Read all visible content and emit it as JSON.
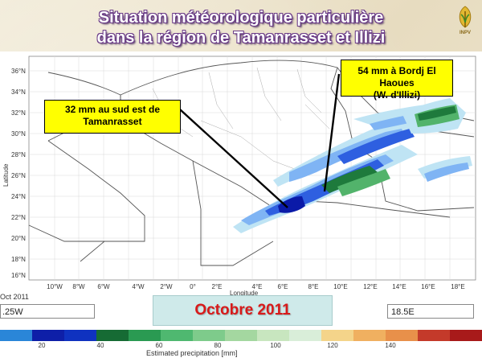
{
  "header": {
    "title_line1": "Situation météorologique particulière",
    "title_line2": "dans la région de Tamanrasset et Illizi",
    "logo_text": "INPV"
  },
  "callouts": {
    "left": {
      "line1": "32 mm au sud est de",
      "line2": "Tamanrasset"
    },
    "right": {
      "line1": "54 mm à Bordj El Haoues",
      "line2": "(W. d'Illizi)"
    }
  },
  "map": {
    "x_ticks": [
      "10°W",
      "8°W",
      "6°W",
      "4°W",
      "2°W",
      "0°",
      "2°E",
      "4°E",
      "6°E",
      "8°E",
      "10°E",
      "12°E",
      "14°E",
      "16°E",
      "18°E"
    ],
    "y_ticks": [
      "36°N",
      "34°N",
      "32°N",
      "30°N",
      "28°N",
      "26°N",
      "24°N",
      "22°N",
      "20°N",
      "18°N",
      "16°N"
    ],
    "x_label": "Longitude",
    "y_label": "Latitude",
    "colors": {
      "deep_blue": "#0a1aa8",
      "blue": "#2e5fe0",
      "light_blue": "#7fb4f4",
      "pale_blue": "#bfe4f4",
      "dark_green": "#1e7a3c",
      "green": "#52b36b"
    }
  },
  "controls": {
    "date_label": "Octobre 2011",
    "left_date": "Oct 2011",
    "left_field": ".25W",
    "right_field": "18.5E"
  },
  "colorbar": {
    "title": "Estimated precipitation [mm]",
    "labels": [
      "20",
      "40",
      "60",
      "80",
      "100",
      "120",
      "140"
    ],
    "colors": [
      "#2a86d8",
      "#0e1fa8",
      "#0f32c0",
      "#166b34",
      "#2a9a52",
      "#4fb870",
      "#7ecb8b",
      "#a4d7a0",
      "#c8e6bf",
      "#d9eed9",
      "#f4d48a",
      "#f0b060",
      "#e8904a",
      "#c43a2a",
      "#a81a1a"
    ]
  }
}
